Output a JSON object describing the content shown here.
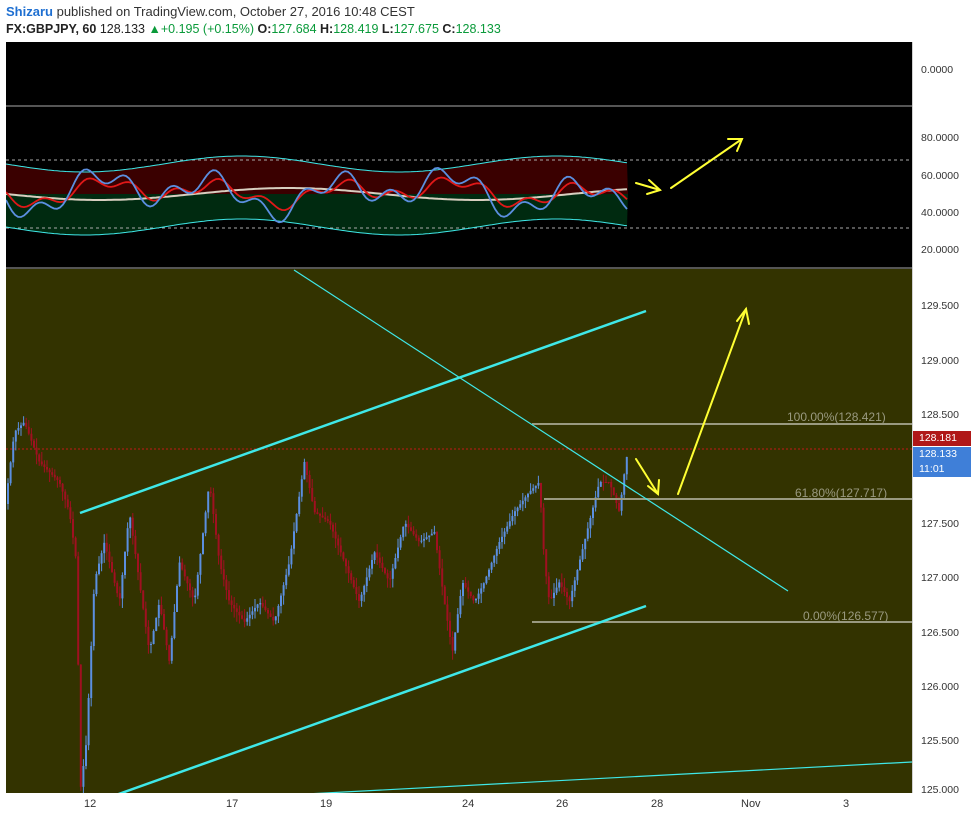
{
  "header": {
    "author": "Shizaru",
    "published": "published on TradingView.com, October 27, 2016 10:48 CEST",
    "symbol": "FX:GBPJPY, 60",
    "last": "128.133",
    "change": "+0.195 (+0.15%)",
    "open_label": "O:",
    "open": "127.684",
    "high_label": "H:",
    "high": "128.419",
    "low_label": "L:",
    "low": "127.675",
    "close_label": "C:",
    "close": "128.133"
  },
  "panes": {
    "top": {
      "axis_labels": [
        "0.0000"
      ]
    },
    "oscillator": {
      "axis_labels": [
        "80.0000",
        "60.0000",
        "40.0000",
        "20.0000"
      ]
    },
    "price": {
      "axis_labels": [
        "129.500",
        "129.000",
        "128.500",
        "127.500",
        "127.000",
        "126.500",
        "126.000",
        "125.500",
        "125.000"
      ],
      "tags": {
        "level": "128.181",
        "last": "128.133",
        "countdown": "11:01"
      },
      "fib_labels": [
        "100.00%(128.421)",
        "61.80%(127.717)",
        "0.00%(126.577)"
      ]
    }
  },
  "xaxis": {
    "labels": [
      "12",
      "17",
      "19",
      "24",
      "26",
      "28",
      "Nov",
      "3"
    ]
  },
  "colors": {
    "price_bg": "#333300",
    "osc_bg": "#000000",
    "bull": "#5b8fe0",
    "bear": "#a01020",
    "trendline": "#3fe8e8",
    "arrow": "#ffff33",
    "fib": "#9a9a80",
    "level_tag": "#b01818",
    "last_tag": "#3f7fd8"
  }
}
